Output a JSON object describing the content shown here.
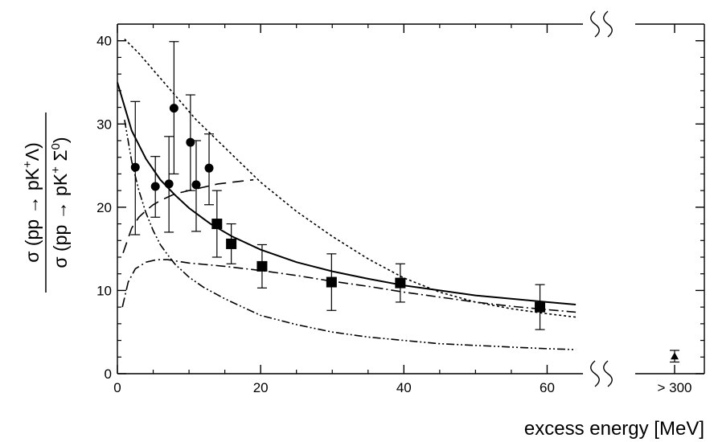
{
  "chart_data": {
    "type": "scatter",
    "xlabel": "excess energy  [MeV]",
    "ylabel_numerator": "σ (pp → pK+Λ)",
    "ylabel_numerator_parts": [
      "σ (pp → pK",
      "+",
      "Λ)"
    ],
    "ylabel_denominator_parts": [
      "σ (pp → pK",
      "+",
      " Σ",
      "0",
      ")"
    ],
    "xlim": [
      0,
      65
    ],
    "ylim": [
      0,
      42
    ],
    "x_ticks": [
      0,
      20,
      40,
      60
    ],
    "x_tick_labels": [
      "0",
      "20",
      "40",
      "60"
    ],
    "y_ticks": [
      0,
      10,
      20,
      30,
      40
    ],
    "y_tick_labels": [
      "0",
      "10",
      "20",
      "30",
      "40"
    ],
    "break_tick_label": "> 300",
    "break_points": [
      {
        "marker": "triangle",
        "y": 2.1,
        "yerr_low": 1.4,
        "yerr_high": 2.8
      }
    ],
    "points": [
      {
        "marker": "circle",
        "x": 2.5,
        "y": 24.8,
        "yerr_low": 16.7,
        "yerr_high": 32.7
      },
      {
        "marker": "circle",
        "x": 5.3,
        "y": 22.5,
        "yerr_low": 18.8,
        "yerr_high": 26.1
      },
      {
        "marker": "circle",
        "x": 7.2,
        "y": 22.8,
        "yerr_low": 17.0,
        "yerr_high": 28.5
      },
      {
        "marker": "circle",
        "x": 7.9,
        "y": 31.9,
        "yerr_low": 24.0,
        "yerr_high": 39.9
      },
      {
        "marker": "circle",
        "x": 10.2,
        "y": 27.8,
        "yerr_low": 22.0,
        "yerr_high": 33.5
      },
      {
        "marker": "circle",
        "x": 11.0,
        "y": 22.7,
        "yerr_low": 17.1,
        "yerr_high": 28.0
      },
      {
        "marker": "circle",
        "x": 12.8,
        "y": 24.7,
        "yerr_low": 20.3,
        "yerr_high": 28.8
      },
      {
        "marker": "square",
        "x": 13.9,
        "y": 18.0,
        "yerr_low": 14.0,
        "yerr_high": 22.0
      },
      {
        "marker": "square",
        "x": 15.9,
        "y": 15.6,
        "yerr_low": 13.2,
        "yerr_high": 18.0
      },
      {
        "marker": "square",
        "x": 20.2,
        "y": 12.9,
        "yerr_low": 10.3,
        "yerr_high": 15.5
      },
      {
        "marker": "square",
        "x": 29.9,
        "y": 11.0,
        "yerr_low": 7.6,
        "yerr_high": 14.4
      },
      {
        "marker": "square",
        "x": 39.5,
        "y": 10.9,
        "yerr_low": 8.6,
        "yerr_high": 13.2
      },
      {
        "marker": "square",
        "x": 59.0,
        "y": 8.0,
        "yerr_low": 5.3,
        "yerr_high": 10.7
      }
    ],
    "curves": [
      {
        "style": "solid",
        "x": [
          0,
          2,
          4,
          6,
          8,
          10,
          13,
          16,
          20,
          25,
          30,
          35,
          40,
          45,
          50,
          55,
          60,
          64
        ],
        "y": [
          35.0,
          29.2,
          25.8,
          23.3,
          21.5,
          19.9,
          18.0,
          16.5,
          14.9,
          13.4,
          12.3,
          11.4,
          10.6,
          10.0,
          9.4,
          9.0,
          8.6,
          8.3
        ]
      },
      {
        "style": "dotted",
        "x": [
          1,
          3,
          5,
          8,
          11,
          14,
          17,
          20,
          25,
          30,
          35,
          40,
          45,
          50,
          55,
          60,
          64
        ],
        "y": [
          40.2,
          38.5,
          36.5,
          33.5,
          30.5,
          28.0,
          25.5,
          23.0,
          19.5,
          16.5,
          13.8,
          11.5,
          9.8,
          8.6,
          7.8,
          7.2,
          6.8
        ]
      },
      {
        "style": "dash-dot",
        "x": [
          0.7,
          1.5,
          2.5,
          4,
          5.5,
          7,
          8.5,
          10,
          15,
          20,
          25,
          30,
          35,
          40,
          45,
          50,
          55,
          60,
          64
        ],
        "y": [
          8.0,
          11.0,
          12.6,
          13.4,
          13.7,
          13.7,
          13.5,
          13.3,
          12.9,
          12.4,
          11.8,
          11.1,
          10.5,
          9.8,
          9.2,
          8.6,
          8.1,
          7.7,
          7.4
        ]
      },
      {
        "style": "dash-dot-dot",
        "x": [
          1,
          2,
          3,
          4,
          5,
          6,
          7,
          8,
          10,
          12,
          15,
          20,
          25,
          30,
          35,
          40,
          45,
          50,
          55,
          60,
          64
        ],
        "y": [
          30.5,
          25.5,
          22.0,
          19.3,
          17.2,
          15.5,
          14.3,
          13.2,
          11.6,
          10.4,
          9.0,
          7.0,
          5.9,
          5.0,
          4.4,
          4.0,
          3.6,
          3.4,
          3.2,
          3.0,
          2.9
        ]
      },
      {
        "style": "long-dash",
        "x": [
          0.8,
          2,
          3,
          4,
          5,
          6,
          7,
          8,
          10,
          12,
          14,
          16,
          18,
          19
        ],
        "y": [
          14.5,
          17.5,
          18.8,
          19.6,
          20.3,
          20.8,
          21.2,
          21.6,
          22.0,
          22.4,
          22.8,
          23.0,
          23.2,
          23.3
        ]
      }
    ]
  }
}
